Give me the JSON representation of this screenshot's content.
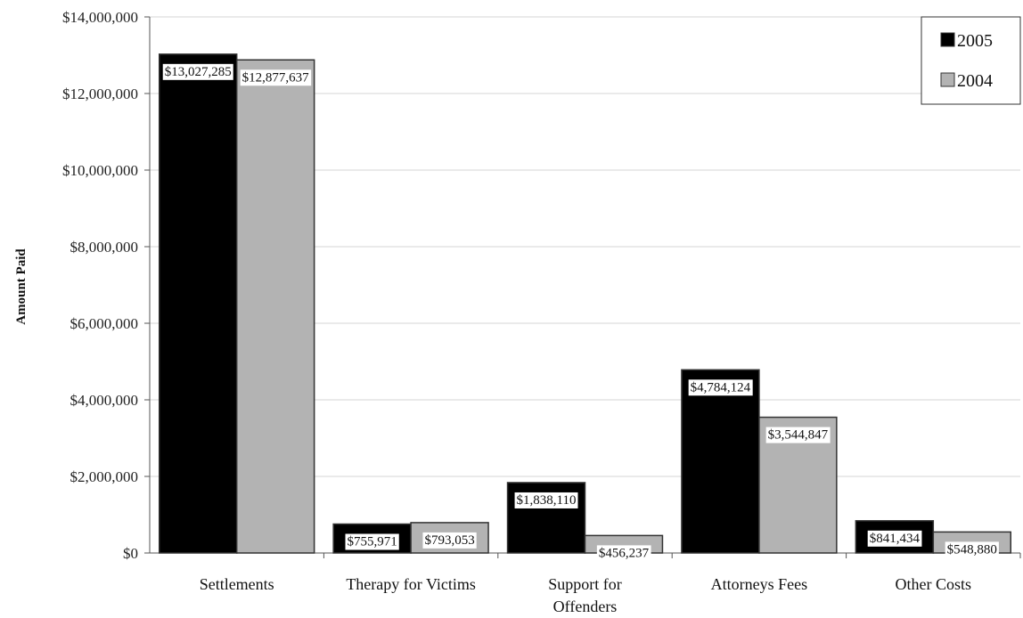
{
  "chart_data": {
    "type": "bar",
    "title": "",
    "xlabel": "",
    "ylabel": "Amount Paid",
    "ylim": [
      0,
      14000000
    ],
    "yticks": [
      0,
      2000000,
      4000000,
      6000000,
      8000000,
      10000000,
      12000000,
      14000000
    ],
    "ytick_labels": [
      "$0",
      "$2,000,000",
      "$4,000,000",
      "$6,000,000",
      "$8,000,000",
      "$10,000,000",
      "$12,000,000",
      "$14,000,000"
    ],
    "grid": true,
    "legend_position": "top-right",
    "categories": [
      [
        "Settlements"
      ],
      [
        "Therapy for Victims"
      ],
      [
        "Support for",
        "Offenders"
      ],
      [
        "Attorneys Fees"
      ],
      [
        "Other Costs"
      ]
    ],
    "series": [
      {
        "name": "2005",
        "color": "#000000",
        "values": [
          13027285,
          755971,
          1838110,
          4784124,
          841434
        ],
        "labels": [
          "$13,027,285",
          "$755,971",
          "$1,838,110",
          "$4,784,124",
          "$841,434"
        ]
      },
      {
        "name": "2004",
        "color": "#b3b3b3",
        "values": [
          12877637,
          793053,
          456237,
          3544847,
          548880
        ],
        "labels": [
          "$12,877,637",
          "$793,053",
          "$456,237",
          "$3,544,847",
          "$548,880"
        ]
      }
    ]
  }
}
